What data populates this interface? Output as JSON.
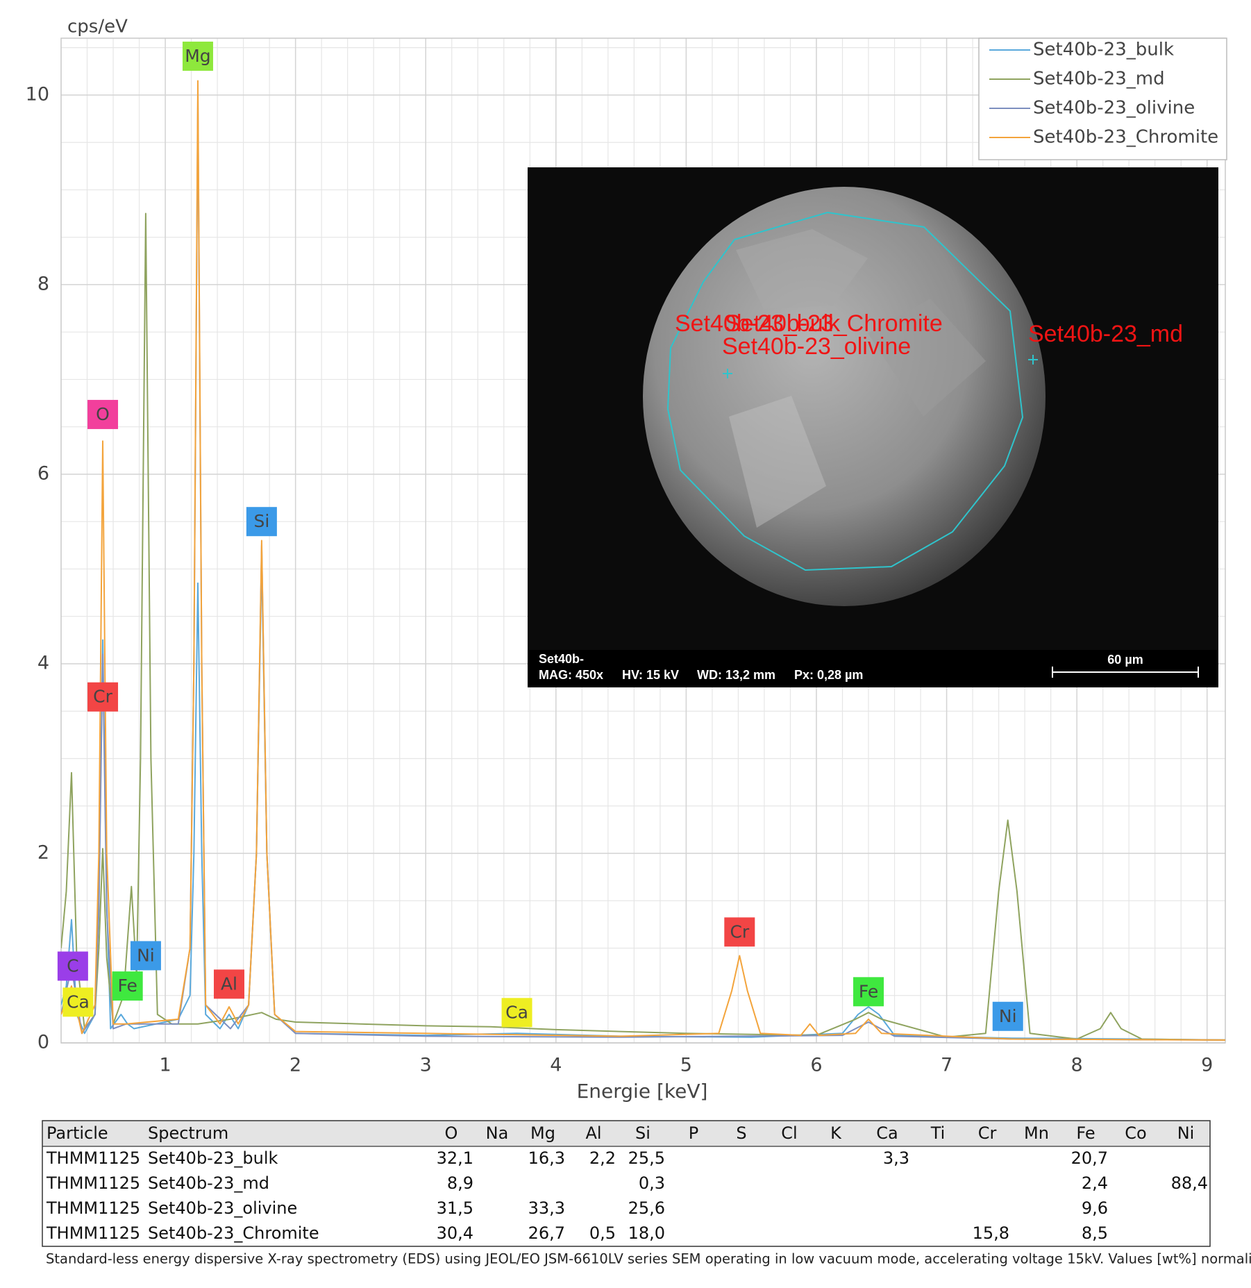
{
  "chart_data": {
    "type": "line",
    "y_label": "cps/eV",
    "x_label": "Energie [keV]",
    "xlim": [
      0.2,
      9.14
    ],
    "ylim": [
      0,
      10.6
    ],
    "xticks": [
      1,
      2,
      3,
      4,
      5,
      6,
      7,
      8,
      9
    ],
    "yticks": [
      0,
      2,
      4,
      6,
      8,
      10
    ],
    "grid": true,
    "x_minor_step": 0.2,
    "y_minor_step": 0.5,
    "legend": "upper right",
    "series": [
      {
        "name": "Set40b-23_bulk",
        "color": "#5aa9dc",
        "x": [
          0.2,
          0.24,
          0.28,
          0.32,
          0.38,
          0.46,
          0.49,
          0.52,
          0.55,
          0.58,
          0.66,
          0.71,
          0.76,
          1.1,
          1.19,
          1.22,
          1.25,
          1.28,
          1.31,
          1.42,
          1.49,
          1.56,
          1.64,
          1.7,
          1.74,
          1.78,
          1.84,
          2.0,
          3.0,
          3.7,
          4.5,
          5.5,
          6.2,
          6.32,
          6.4,
          6.48,
          6.6,
          7.5,
          8.5,
          9.14
        ],
        "values": [
          0.4,
          0.6,
          1.3,
          0.3,
          0.1,
          0.3,
          1.5,
          4.25,
          1.5,
          0.15,
          0.3,
          0.2,
          0.15,
          0.25,
          0.5,
          2.0,
          4.85,
          2.0,
          0.3,
          0.15,
          0.3,
          0.15,
          0.4,
          2.0,
          5.1,
          2.0,
          0.3,
          0.1,
          0.08,
          0.1,
          0.07,
          0.06,
          0.1,
          0.3,
          0.38,
          0.3,
          0.08,
          0.05,
          0.04,
          0.03
        ]
      },
      {
        "name": "Set40b-23_md",
        "color": "#8fa35f",
        "x": [
          0.2,
          0.24,
          0.28,
          0.32,
          0.38,
          0.46,
          0.49,
          0.52,
          0.55,
          0.6,
          0.68,
          0.74,
          0.78,
          0.81,
          0.85,
          0.89,
          0.94,
          1.05,
          1.25,
          1.5,
          1.74,
          1.85,
          2.0,
          2.5,
          3.0,
          3.5,
          4.0,
          5.0,
          6.0,
          6.3,
          6.4,
          6.5,
          7.0,
          7.3,
          7.4,
          7.47,
          7.54,
          7.64,
          8.0,
          8.18,
          8.26,
          8.34,
          8.5,
          9.14
        ],
        "values": [
          1.0,
          1.6,
          2.85,
          0.9,
          0.15,
          0.3,
          1.0,
          2.05,
          0.9,
          0.2,
          0.5,
          1.65,
          0.7,
          3.0,
          8.75,
          3.0,
          0.3,
          0.2,
          0.2,
          0.25,
          0.32,
          0.25,
          0.22,
          0.2,
          0.18,
          0.17,
          0.14,
          0.1,
          0.08,
          0.25,
          0.32,
          0.25,
          0.06,
          0.1,
          1.6,
          2.35,
          1.6,
          0.1,
          0.04,
          0.15,
          0.32,
          0.15,
          0.04,
          0.03
        ]
      },
      {
        "name": "Set40b-23_olivine",
        "color": "#7d8fbf",
        "x": [
          0.2,
          0.28,
          0.36,
          0.46,
          0.49,
          0.52,
          0.55,
          0.6,
          0.7,
          1.1,
          1.19,
          1.22,
          1.25,
          1.28,
          1.31,
          1.5,
          1.64,
          1.7,
          1.74,
          1.78,
          1.84,
          2.0,
          3.0,
          4.5,
          6.2,
          6.4,
          6.6,
          7.5,
          9.14
        ],
        "values": [
          0.3,
          0.8,
          0.1,
          0.3,
          1.4,
          4.1,
          1.4,
          0.15,
          0.2,
          0.2,
          1.0,
          4.0,
          9.95,
          4.0,
          0.4,
          0.15,
          0.4,
          2.0,
          5.25,
          2.0,
          0.3,
          0.1,
          0.07,
          0.06,
          0.08,
          0.22,
          0.07,
          0.04,
          0.03
        ]
      },
      {
        "name": "Set40b-23_Chromite",
        "color": "#f3a43c",
        "x": [
          0.2,
          0.28,
          0.36,
          0.46,
          0.49,
          0.52,
          0.55,
          0.6,
          0.7,
          1.1,
          1.19,
          1.22,
          1.25,
          1.28,
          1.31,
          1.42,
          1.49,
          1.56,
          1.64,
          1.7,
          1.74,
          1.78,
          1.84,
          2.0,
          3.0,
          4.5,
          5.25,
          5.35,
          5.41,
          5.47,
          5.57,
          5.88,
          5.95,
          6.02,
          6.3,
          6.4,
          6.5,
          7.5,
          9.14
        ],
        "values": [
          0.3,
          0.6,
          0.1,
          0.4,
          2.0,
          6.35,
          2.0,
          0.2,
          0.2,
          0.25,
          1.0,
          4.0,
          10.15,
          4.0,
          0.4,
          0.2,
          0.38,
          0.2,
          0.4,
          2.0,
          5.3,
          2.0,
          0.3,
          0.12,
          0.1,
          0.07,
          0.1,
          0.55,
          0.92,
          0.55,
          0.1,
          0.08,
          0.2,
          0.08,
          0.1,
          0.25,
          0.1,
          0.04,
          0.03
        ]
      }
    ],
    "annotations": [
      {
        "text": "Mg",
        "x": 1.25,
        "y": 10.41,
        "color": "#8ee83c"
      },
      {
        "text": "O",
        "x": 0.52,
        "y": 6.63,
        "color": "#f23f9c"
      },
      {
        "text": "Cr",
        "x": 0.52,
        "y": 3.65,
        "color": "#f24545"
      },
      {
        "text": "Si",
        "x": 1.74,
        "y": 5.5,
        "color": "#3b9ae8"
      },
      {
        "text": "C",
        "x": 0.29,
        "y": 0.81,
        "color": "#9a3ee8"
      },
      {
        "text": "Ca",
        "x": 0.33,
        "y": 0.43,
        "color": "#eeee22"
      },
      {
        "text": "Ni",
        "x": 0.85,
        "y": 0.92,
        "color": "#3b9ae8"
      },
      {
        "text": "Fe",
        "x": 0.71,
        "y": 0.6,
        "color": "#3fe83f"
      },
      {
        "text": "Al",
        "x": 1.49,
        "y": 0.62,
        "color": "#f24545"
      },
      {
        "text": "Cr",
        "x": 5.41,
        "y": 1.17,
        "color": "#f24545"
      },
      {
        "text": "Ca",
        "x": 3.7,
        "y": 0.32,
        "color": "#eeee22"
      },
      {
        "text": "Fe",
        "x": 6.4,
        "y": 0.54,
        "color": "#3fe83f"
      },
      {
        "text": "Ni",
        "x": 7.47,
        "y": 0.28,
        "color": "#3b9ae8"
      }
    ]
  },
  "inset": {
    "labels": [
      "Set40b-23_bulk",
      "Set40b-23_Chromite",
      "Set40b-23_olivine",
      "Set40b-23_md"
    ],
    "sample": "Set40b-",
    "mag": "MAG: 450x",
    "hv": "HV: 15 kV",
    "wd": "WD: 13,2 mm",
    "px": "Px: 0,28 µm",
    "scale": "60 µm"
  },
  "table": {
    "header": [
      "Particle",
      "Spectrum",
      "O",
      "Na",
      "Mg",
      "Al",
      "Si",
      "P",
      "S",
      "Cl",
      "K",
      "Ca",
      "Ti",
      "Cr",
      "Mn",
      "Fe",
      "Co",
      "Ni"
    ],
    "rows": [
      [
        "THMM1125",
        "Set40b-23_bulk",
        "32,1",
        null,
        "16,3",
        "2,2",
        "25,5",
        null,
        null,
        null,
        null,
        "3,3",
        null,
        null,
        null,
        "20,7",
        null,
        null
      ],
      [
        "THMM1125",
        "Set40b-23_md",
        "8,9",
        null,
        null,
        null,
        "0,3",
        null,
        null,
        null,
        null,
        null,
        null,
        null,
        null,
        "2,4",
        null,
        "88,4"
      ],
      [
        "THMM1125",
        "Set40b-23_olivine",
        "31,5",
        null,
        "33,3",
        null,
        "25,6",
        null,
        null,
        null,
        null,
        null,
        null,
        null,
        null,
        "9,6",
        null,
        null
      ],
      [
        "THMM1125",
        "Set40b-23_Chromite",
        "30,4",
        null,
        "26,7",
        "0,5",
        "18,0",
        null,
        null,
        null,
        null,
        null,
        null,
        "15,8",
        null,
        "8,5",
        null,
        null
      ]
    ],
    "caption": "Standard-less energy dispersive X-ray spectrometry (EDS) using JEOL/EO JSM-6610LV series SEM operating in low vacuum mode, accelerating voltage 15kV. Values [wt%] normalized."
  }
}
